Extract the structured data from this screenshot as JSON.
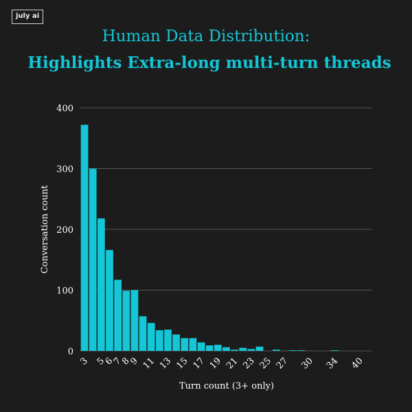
{
  "brand": {
    "logo_text": "july ai"
  },
  "colors": {
    "background": "#1c1c1c",
    "accent": "#14c6d6",
    "text": "#ffffff",
    "grid": "#555555"
  },
  "chart_data": {
    "type": "bar",
    "title": "Human Data Distribution:",
    "subtitle": "Highlights Extra-long multi-turn threads",
    "xlabel": "Turn count (3+ only)",
    "ylabel": "Conversation count",
    "ylim": [
      0,
      400
    ],
    "yticks": [
      0,
      100,
      200,
      300,
      400
    ],
    "grid": true,
    "categories": [
      "3",
      "4",
      "5",
      "6",
      "7",
      "8",
      "9",
      "10",
      "11",
      "12",
      "13",
      "14",
      "15",
      "16",
      "17",
      "18",
      "19",
      "20",
      "21",
      "22",
      "23",
      "24",
      "25",
      "26",
      "27",
      "28",
      "29",
      "30",
      "31",
      "32",
      "34",
      "36",
      "38",
      "40",
      "42"
    ],
    "xtick_labels": [
      {
        "category": "3",
        "label": "3"
      },
      {
        "category": "5",
        "label": "5"
      },
      {
        "category": "6",
        "label": "6"
      },
      {
        "category": "7",
        "label": "7"
      },
      {
        "category": "8",
        "label": "8"
      },
      {
        "category": "9",
        "label": "9"
      },
      {
        "category": "11",
        "label": "11"
      },
      {
        "category": "13",
        "label": "13"
      },
      {
        "category": "15",
        "label": "15"
      },
      {
        "category": "17",
        "label": "17"
      },
      {
        "category": "19",
        "label": "19"
      },
      {
        "category": "21",
        "label": "21"
      },
      {
        "category": "23",
        "label": "23"
      },
      {
        "category": "25",
        "label": "25"
      },
      {
        "category": "27",
        "label": "27"
      },
      {
        "category": "30",
        "label": "30"
      },
      {
        "category": "34",
        "label": "34"
      },
      {
        "category": "40",
        "label": "40"
      }
    ],
    "values": [
      372,
      300,
      218,
      166,
      117,
      99,
      100,
      57,
      46,
      34,
      35,
      27,
      21,
      21,
      14,
      9,
      10,
      6,
      2,
      5,
      3,
      7,
      0,
      2,
      0,
      1,
      1,
      0,
      0,
      0,
      1,
      0,
      0,
      0,
      0
    ]
  }
}
